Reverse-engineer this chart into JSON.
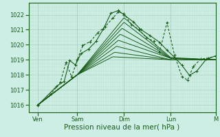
{
  "bg_color": "#cceee4",
  "grid_color_major": "#aacfbf",
  "grid_color_minor": "#bbddd0",
  "line_color": "#1a5c1a",
  "xlim": [
    0,
    100
  ],
  "ylim": [
    1015.5,
    1022.8
  ],
  "yticks": [
    1016,
    1017,
    1018,
    1019,
    1020,
    1021,
    1022
  ],
  "xlabel": "Pression niveau de la mer( hPa )",
  "day_labels": [
    "Ven",
    "Sam",
    "Dim",
    "Lun",
    "M"
  ],
  "day_positions": [
    5,
    26,
    51,
    76,
    100
  ],
  "tick_fontsize": 6,
  "xlabel_fontsize": 7.5
}
